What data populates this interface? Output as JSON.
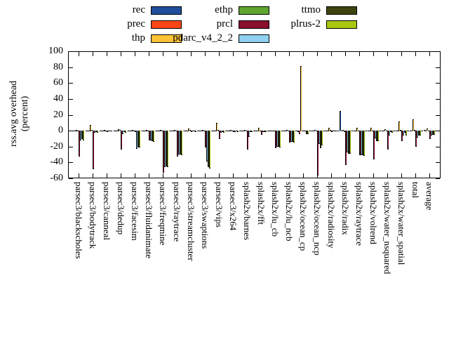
{
  "figure": {
    "ylabel_line1": "rss.avg overhead",
    "ylabel_line2": "(percent)"
  },
  "chart_data": {
    "type": "bar",
    "title": "",
    "xlabel": "",
    "ylabel": "rss.avg overhead (percent)",
    "ylim": [
      -60,
      100
    ],
    "yticks": [
      -60,
      -40,
      -20,
      0,
      20,
      40,
      60,
      80,
      100
    ],
    "grid": false,
    "zero_line": "dashed",
    "legend_position": "top-center",
    "legend_columns": [
      [
        "rec",
        "prec",
        "thp"
      ],
      [
        "ethp",
        "prcl",
        "pdarc_v4_2_2"
      ],
      [
        "ttmo",
        "plrus-2"
      ]
    ],
    "categories": [
      "parsec3/blackscholes",
      "parsec3/bodytrack",
      "parsec3/canneal",
      "parsec3/dedup",
      "parsec3/facesim",
      "parsec3/fluidanimate",
      "parsec3/freqmine",
      "parsec3/raytrace",
      "parsec3/streamcluster",
      "parsec3/swaptions",
      "parsec3/vips",
      "parsec3/x264",
      "splash2x/barnes",
      "splash2x/fft",
      "splash2x/lu_cb",
      "splash2x/lu_ncb",
      "splash2x/ocean_cp",
      "splash2x/ocean_ncp",
      "splash2x/radiosity",
      "splash2x/radix",
      "splash2x/raytrace",
      "splash2x/volrend",
      "splash2x/water_nsquared",
      "splash2x/water_spatial",
      "total",
      "average"
    ],
    "series": [
      {
        "name": "rec",
        "color": "#1f4e9b",
        "values": [
          -1,
          -1,
          -1,
          -1,
          -1,
          -1,
          -1,
          -1,
          -1,
          -1,
          -1,
          -1,
          -1,
          -1,
          -1,
          -1,
          -2,
          -1,
          -1,
          25,
          -1,
          -1,
          -1,
          -1,
          -1,
          1
        ]
      },
      {
        "name": "prec",
        "color": "#fa4616",
        "values": [
          -1,
          -1,
          -1,
          -1,
          -1,
          -1,
          -1,
          -1,
          -1,
          -1,
          -1,
          -1,
          -1,
          -1,
          -1,
          -1,
          -4,
          -1,
          -1,
          -1,
          -1,
          -1,
          -1,
          -1,
          -1,
          -1
        ]
      },
      {
        "name": "thp",
        "color": "#fdc236",
        "values": [
          1,
          7,
          1,
          2,
          1,
          1,
          1,
          1,
          3,
          1,
          10,
          1,
          1,
          4,
          -1,
          1,
          81,
          1,
          4,
          1,
          4,
          4,
          2,
          12,
          14,
          3
        ]
      },
      {
        "name": "ethp",
        "color": "#5ea62e",
        "values": [
          -1,
          1,
          0,
          1,
          0,
          -1,
          -1,
          -1,
          1,
          -1,
          1,
          0,
          -1,
          -1,
          -1,
          -1,
          -1,
          -1,
          1,
          -2,
          -1,
          -1,
          -1,
          1,
          1,
          -1
        ]
      },
      {
        "name": "prcl",
        "color": "#8a0f2d",
        "values": [
          -33,
          -49,
          -2,
          -24,
          -2,
          -12,
          -53,
          -33,
          -2,
          -21,
          -11,
          -2,
          -24,
          -5,
          -22,
          -15,
          -1,
          -57,
          -2,
          -43,
          -31,
          -36,
          -24,
          -13,
          -20,
          -11
        ]
      },
      {
        "name": "pdarc_v4_2_2",
        "color": "#90d0f0",
        "values": [
          -12,
          -3,
          -1,
          -4,
          -23,
          -12,
          -46,
          -30,
          -1,
          -39,
          -3,
          -2,
          -8,
          -2,
          -20,
          -14,
          -1,
          -17,
          -1,
          -27,
          -31,
          -10,
          -6,
          -6,
          -9,
          -6
        ]
      },
      {
        "name": "ttmo",
        "color": "#3c430f",
        "values": [
          -11,
          -2,
          -1,
          -2,
          -21,
          -13,
          -45,
          -30,
          -1,
          -46,
          -2,
          -1,
          -2,
          -2,
          -20,
          -14,
          -4,
          -22,
          -1,
          -29,
          -31,
          -13,
          -2,
          -3,
          -6,
          -5
        ]
      },
      {
        "name": "plrus-2",
        "color": "#a8c70d",
        "values": [
          -12,
          -3,
          -1,
          -3,
          -21,
          -14,
          -46,
          -31,
          -2,
          -48,
          -3,
          -2,
          -2,
          -2,
          -21,
          -15,
          -4,
          -19,
          -1,
          -29,
          -32,
          -13,
          -3,
          -6,
          -6,
          -5
        ]
      }
    ]
  }
}
